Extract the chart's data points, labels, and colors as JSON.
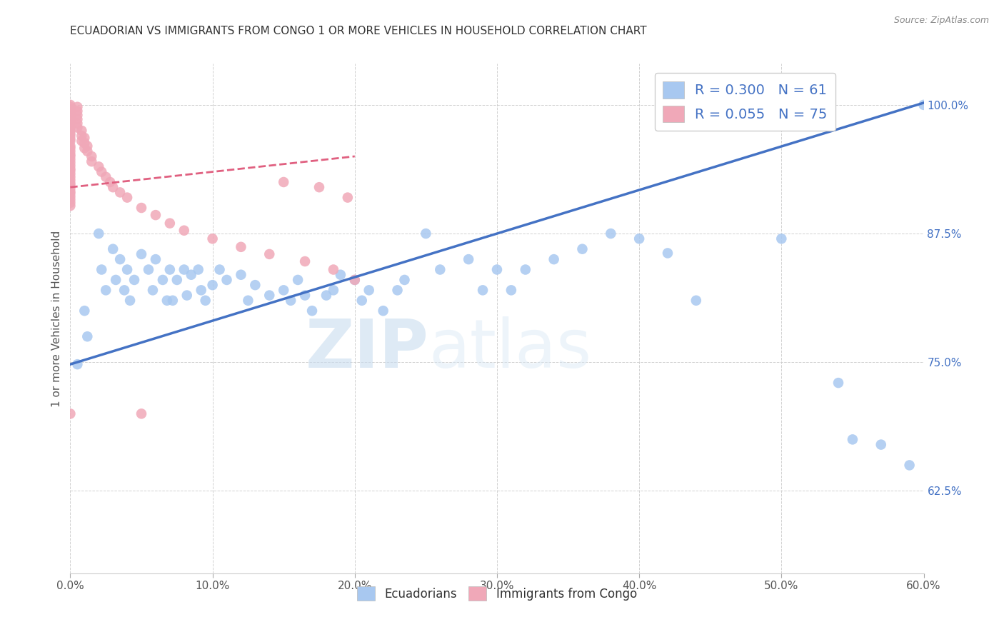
{
  "title": "ECUADORIAN VS IMMIGRANTS FROM CONGO 1 OR MORE VEHICLES IN HOUSEHOLD CORRELATION CHART",
  "source": "Source: ZipAtlas.com",
  "ylabel": "1 or more Vehicles in Household",
  "legend_label1": "Ecuadorians",
  "legend_label2": "Immigrants from Congo",
  "r1": 0.3,
  "n1": 61,
  "r2": 0.055,
  "n2": 75,
  "xmin": 0.0,
  "xmax": 0.6,
  "ymin": 0.545,
  "ymax": 1.04,
  "yticks": [
    0.625,
    0.75,
    0.875,
    1.0
  ],
  "ytick_labels": [
    "62.5%",
    "75.0%",
    "87.5%",
    "100.0%"
  ],
  "xtick_vals": [
    0.0,
    0.1,
    0.2,
    0.3,
    0.4,
    0.5,
    0.6
  ],
  "xtick_labels": [
    "0.0%",
    "10.0%",
    "20.0%",
    "30.0%",
    "40.0%",
    "50.0%",
    "60.0%"
  ],
  "color_blue": "#A8C8F0",
  "color_pink": "#F0A8B8",
  "line_blue": "#4472C4",
  "line_pink": "#E06080",
  "watermark_zip": "ZIP",
  "watermark_atlas": "atlas",
  "blue_line_x0": 0.0,
  "blue_line_y0": 0.748,
  "blue_line_x1": 0.6,
  "blue_line_y1": 1.002,
  "pink_line_x0": 0.0,
  "pink_line_y0": 0.92,
  "pink_line_x1": 0.2,
  "pink_line_y1": 0.95,
  "blue_dots": [
    [
      0.005,
      0.748
    ],
    [
      0.01,
      0.8
    ],
    [
      0.012,
      0.775
    ],
    [
      0.02,
      0.875
    ],
    [
      0.022,
      0.84
    ],
    [
      0.025,
      0.82
    ],
    [
      0.03,
      0.86
    ],
    [
      0.032,
      0.83
    ],
    [
      0.035,
      0.85
    ],
    [
      0.038,
      0.82
    ],
    [
      0.04,
      0.84
    ],
    [
      0.042,
      0.81
    ],
    [
      0.045,
      0.83
    ],
    [
      0.05,
      0.855
    ],
    [
      0.055,
      0.84
    ],
    [
      0.058,
      0.82
    ],
    [
      0.06,
      0.85
    ],
    [
      0.065,
      0.83
    ],
    [
      0.068,
      0.81
    ],
    [
      0.07,
      0.84
    ],
    [
      0.072,
      0.81
    ],
    [
      0.075,
      0.83
    ],
    [
      0.08,
      0.84
    ],
    [
      0.082,
      0.815
    ],
    [
      0.085,
      0.835
    ],
    [
      0.09,
      0.84
    ],
    [
      0.092,
      0.82
    ],
    [
      0.095,
      0.81
    ],
    [
      0.1,
      0.825
    ],
    [
      0.105,
      0.84
    ],
    [
      0.11,
      0.83
    ],
    [
      0.12,
      0.835
    ],
    [
      0.125,
      0.81
    ],
    [
      0.13,
      0.825
    ],
    [
      0.14,
      0.815
    ],
    [
      0.15,
      0.82
    ],
    [
      0.155,
      0.81
    ],
    [
      0.16,
      0.83
    ],
    [
      0.165,
      0.815
    ],
    [
      0.17,
      0.8
    ],
    [
      0.18,
      0.815
    ],
    [
      0.185,
      0.82
    ],
    [
      0.19,
      0.835
    ],
    [
      0.2,
      0.83
    ],
    [
      0.205,
      0.81
    ],
    [
      0.21,
      0.82
    ],
    [
      0.22,
      0.8
    ],
    [
      0.23,
      0.82
    ],
    [
      0.235,
      0.83
    ],
    [
      0.25,
      0.875
    ],
    [
      0.26,
      0.84
    ],
    [
      0.28,
      0.85
    ],
    [
      0.29,
      0.82
    ],
    [
      0.3,
      0.84
    ],
    [
      0.31,
      0.82
    ],
    [
      0.32,
      0.84
    ],
    [
      0.34,
      0.85
    ],
    [
      0.36,
      0.86
    ],
    [
      0.38,
      0.875
    ],
    [
      0.4,
      0.87
    ],
    [
      0.42,
      0.856
    ],
    [
      0.44,
      0.81
    ],
    [
      0.5,
      0.87
    ],
    [
      0.54,
      0.73
    ],
    [
      0.55,
      0.675
    ],
    [
      0.57,
      0.67
    ],
    [
      0.59,
      0.65
    ],
    [
      0.6,
      1.0
    ]
  ],
  "pink_dots": [
    [
      0.0,
      1.0
    ],
    [
      0.0,
      0.998
    ],
    [
      0.0,
      0.996
    ],
    [
      0.0,
      0.993
    ],
    [
      0.0,
      0.99
    ],
    [
      0.0,
      0.988
    ],
    [
      0.0,
      0.985
    ],
    [
      0.0,
      0.982
    ],
    [
      0.0,
      0.978
    ],
    [
      0.0,
      0.975
    ],
    [
      0.0,
      0.972
    ],
    [
      0.0,
      0.97
    ],
    [
      0.0,
      0.967
    ],
    [
      0.0,
      0.965
    ],
    [
      0.0,
      0.96
    ],
    [
      0.0,
      0.958
    ],
    [
      0.0,
      0.955
    ],
    [
      0.0,
      0.952
    ],
    [
      0.0,
      0.95
    ],
    [
      0.0,
      0.947
    ],
    [
      0.0,
      0.944
    ],
    [
      0.0,
      0.941
    ],
    [
      0.0,
      0.938
    ],
    [
      0.0,
      0.936
    ],
    [
      0.0,
      0.933
    ],
    [
      0.0,
      0.93
    ],
    [
      0.0,
      0.927
    ],
    [
      0.0,
      0.924
    ],
    [
      0.0,
      0.922
    ],
    [
      0.0,
      0.919
    ],
    [
      0.0,
      0.916
    ],
    [
      0.0,
      0.914
    ],
    [
      0.0,
      0.911
    ],
    [
      0.0,
      0.908
    ],
    [
      0.0,
      0.905
    ],
    [
      0.0,
      0.902
    ],
    [
      0.005,
      0.998
    ],
    [
      0.005,
      0.994
    ],
    [
      0.005,
      0.99
    ],
    [
      0.005,
      0.986
    ],
    [
      0.005,
      0.982
    ],
    [
      0.005,
      0.978
    ],
    [
      0.008,
      0.975
    ],
    [
      0.008,
      0.97
    ],
    [
      0.008,
      0.965
    ],
    [
      0.01,
      0.968
    ],
    [
      0.01,
      0.963
    ],
    [
      0.01,
      0.958
    ],
    [
      0.012,
      0.96
    ],
    [
      0.012,
      0.955
    ],
    [
      0.015,
      0.95
    ],
    [
      0.015,
      0.945
    ],
    [
      0.02,
      0.94
    ],
    [
      0.022,
      0.935
    ],
    [
      0.025,
      0.93
    ],
    [
      0.028,
      0.925
    ],
    [
      0.03,
      0.92
    ],
    [
      0.035,
      0.915
    ],
    [
      0.04,
      0.91
    ],
    [
      0.05,
      0.9
    ],
    [
      0.06,
      0.893
    ],
    [
      0.07,
      0.885
    ],
    [
      0.08,
      0.878
    ],
    [
      0.1,
      0.87
    ],
    [
      0.12,
      0.862
    ],
    [
      0.14,
      0.855
    ],
    [
      0.165,
      0.848
    ],
    [
      0.185,
      0.84
    ],
    [
      0.2,
      0.83
    ],
    [
      0.0,
      0.7
    ],
    [
      0.05,
      0.7
    ],
    [
      0.15,
      0.925
    ],
    [
      0.175,
      0.92
    ],
    [
      0.195,
      0.91
    ]
  ]
}
